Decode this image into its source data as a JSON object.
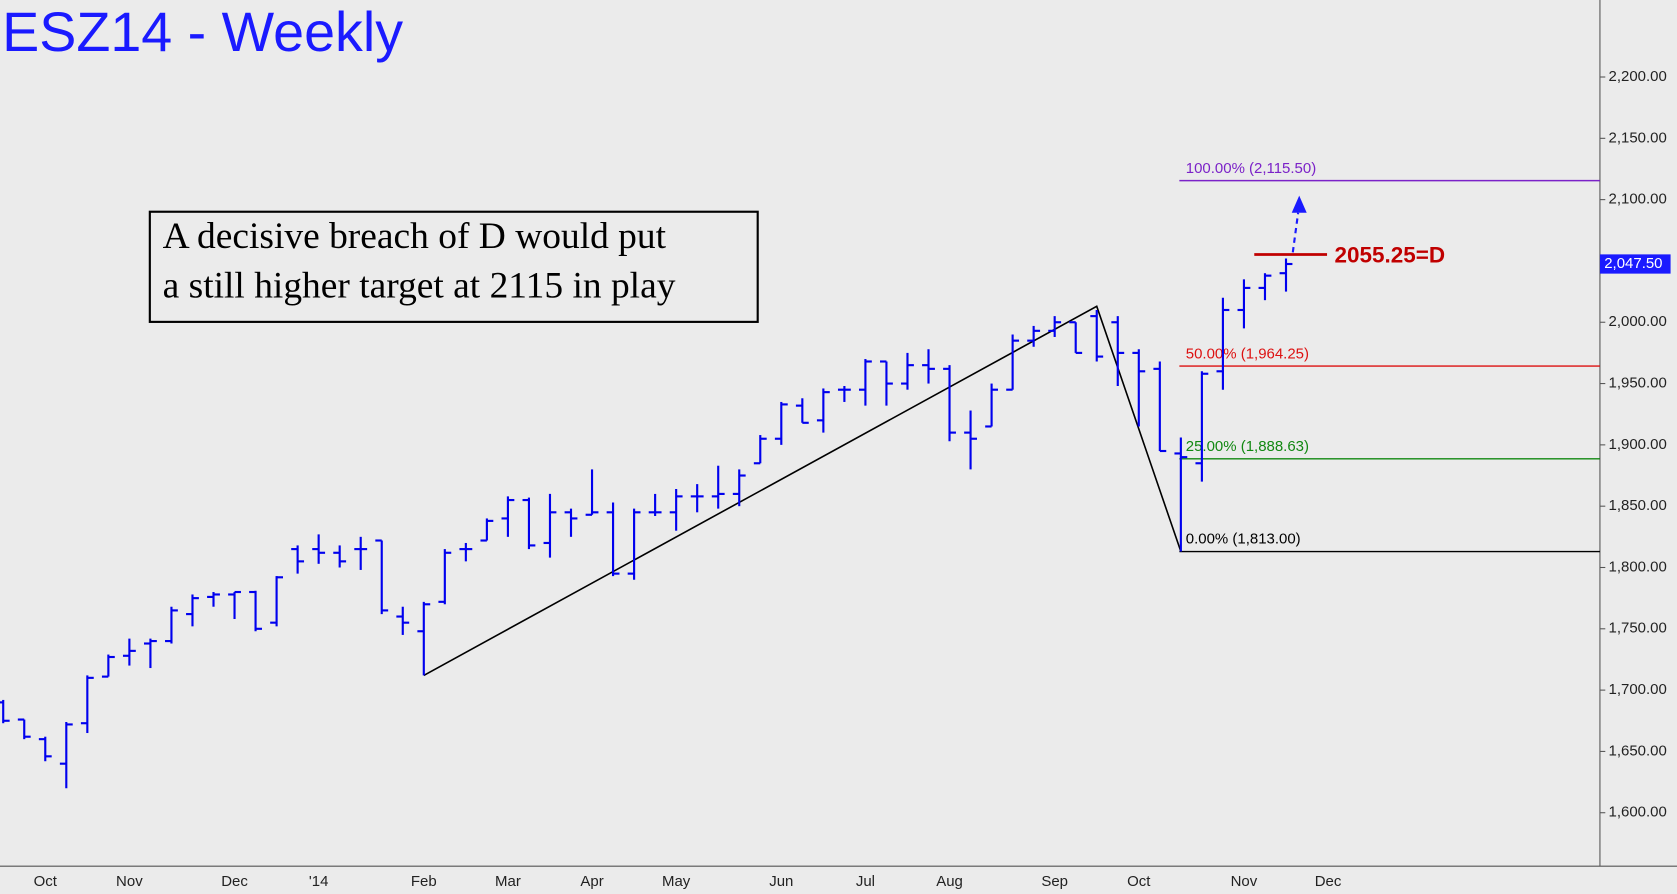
{
  "chart_data": {
    "type": "ohlc",
    "title": "ESZ14 - Weekly",
    "color": "#0000ee",
    "categories": [
      null,
      null,
      "Oct",
      null,
      null,
      null,
      "Nov",
      null,
      null,
      null,
      null,
      "Dec",
      null,
      null,
      null,
      "'14",
      null,
      null,
      null,
      null,
      "Feb",
      null,
      null,
      null,
      "Mar",
      null,
      null,
      null,
      "Apr",
      null,
      null,
      null,
      "May",
      null,
      null,
      null,
      null,
      "Jun",
      null,
      null,
      null,
      "Jul",
      null,
      null,
      null,
      "Aug",
      null,
      null,
      null,
      null,
      "Sep",
      null,
      null,
      null,
      "Oct",
      null,
      null,
      null,
      null,
      "Nov",
      null,
      null,
      null,
      "Dec"
    ],
    "open": [
      1690,
      1676,
      1660,
      1640,
      1673,
      1711,
      1728,
      1738,
      1740,
      1762,
      1776,
      1778,
      1780,
      1755,
      1815,
      1815,
      1812,
      1815,
      1822,
      1760,
      1748,
      1772,
      1815,
      1822,
      1840,
      1855,
      1820,
      1845,
      1843,
      1845,
      1795,
      1845,
      1845,
      1858,
      1858,
      1860,
      1885,
      1905,
      1932,
      1920,
      1945,
      1945,
      1968,
      1950,
      1965,
      1962,
      1910,
      1915,
      1945,
      1985,
      1993,
      2000,
      2005,
      2000,
      1975,
      1962,
      1893,
      1885,
      1960,
      2010,
      2028,
      2040,
      null,
      null
    ],
    "high": [
      1692,
      1676,
      1662,
      1674,
      1712,
      1729,
      1742,
      1742,
      1768,
      1778,
      1780,
      1780,
      1781,
      1793,
      1818,
      1827,
      1818,
      1825,
      1822,
      1768,
      1772,
      1815,
      1820,
      1840,
      1858,
      1857,
      1860,
      1848,
      1880,
      1853,
      1848,
      1860,
      1864,
      1868,
      1883,
      1880,
      1908,
      1935,
      1938,
      1946,
      1948,
      1970,
      1968,
      1975,
      1978,
      1965,
      1928,
      1950,
      1990,
      1997,
      2005,
      2000,
      2010,
      2005,
      1978,
      1968,
      1906,
      1960,
      2020,
      2035,
      2040,
      2052,
      null,
      null
    ],
    "low": [
      1673,
      1660,
      1642,
      1620,
      1665,
      1711,
      1720,
      1718,
      1738,
      1752,
      1768,
      1758,
      1748,
      1752,
      1795,
      1803,
      1800,
      1798,
      1762,
      1745,
      1712,
      1770,
      1805,
      1822,
      1825,
      1815,
      1808,
      1825,
      1843,
      1793,
      1790,
      1842,
      1830,
      1845,
      1848,
      1850,
      1885,
      1900,
      1918,
      1910,
      1935,
      1932,
      1932,
      1945,
      1950,
      1903,
      1880,
      1915,
      1945,
      1980,
      1988,
      1975,
      1968,
      1948,
      1915,
      1895,
      1813,
      1870,
      1945,
      1995,
      2018,
      2025,
      null,
      null
    ],
    "close": [
      1675,
      1662,
      1646,
      1672,
      1710,
      1727,
      1732,
      1740,
      1765,
      1775,
      1778,
      1780,
      1750,
      1792,
      1805,
      1812,
      1805,
      1815,
      1765,
      1755,
      1770,
      1812,
      1815,
      1838,
      1855,
      1818,
      1845,
      1840,
      1845,
      1795,
      1845,
      1845,
      1858,
      1858,
      1860,
      1875,
      1905,
      1933,
      1918,
      1943,
      1945,
      1968,
      1950,
      1965,
      1962,
      1910,
      1905,
      1945,
      1985,
      1993,
      2000,
      1975,
      1972,
      1975,
      1960,
      1895,
      1890,
      1958,
      2010,
      2028,
      2038,
      2047.5,
      null,
      null
    ],
    "ylim": [
      1556.4,
      2262.8
    ],
    "yticks": [
      {
        "value": 1600,
        "label": "1,600.00"
      },
      {
        "value": 1650,
        "label": "1,650.00"
      },
      {
        "value": 1700,
        "label": "1,700.00"
      },
      {
        "value": 1750,
        "label": "1,750.00"
      },
      {
        "value": 1800,
        "label": "1,800.00"
      },
      {
        "value": 1850,
        "label": "1,850.00"
      },
      {
        "value": 1900,
        "label": "1,900.00"
      },
      {
        "value": 1950,
        "label": "1,950.00"
      },
      {
        "value": 2000,
        "label": "2,000.00"
      },
      {
        "value": 2050,
        "label": "2,050.00"
      },
      {
        "value": 2100,
        "label": "2,100.00"
      },
      {
        "value": 2150,
        "label": "2,150.00"
      },
      {
        "value": 2200,
        "label": "2,200.00"
      }
    ],
    "last_price": {
      "value": 2047.5,
      "label": "2,047.50"
    },
    "levels": [
      {
        "value": 2115.5,
        "label": "100.00% (2,115.50)",
        "color": "#7b22c8"
      },
      {
        "value": 1964.25,
        "label": "50.00% (1,964.25)",
        "color": "#dd1111"
      },
      {
        "value": 1888.63,
        "label": "25.00% (1,888.63)",
        "color": "#118811"
      },
      {
        "value": 1813,
        "label": "0.00% (1,813.00)",
        "color": "#000000"
      }
    ],
    "target": {
      "value": 2055.25,
      "label": "2055.25=D",
      "color": "#c00000"
    },
    "trendline": [
      {
        "index": 20,
        "value": 1712
      },
      {
        "index": 52,
        "value": 2013
      },
      {
        "index": 56,
        "value": 1813
      }
    ],
    "annotation": [
      "A decisive breach of D would put",
      "a still higher target at 2115 in play"
    ]
  }
}
